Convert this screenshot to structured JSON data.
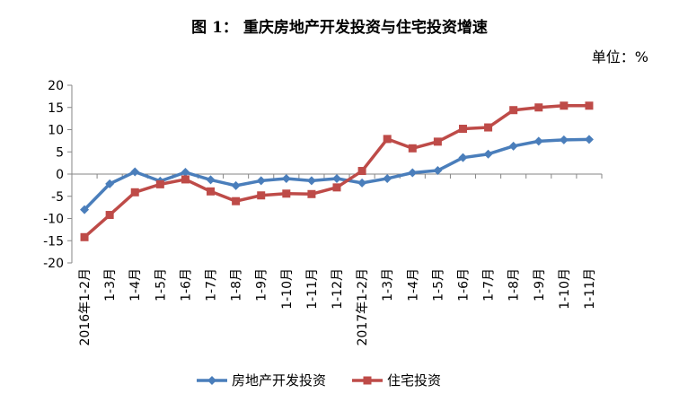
{
  "chart_data": {
    "type": "line",
    "title": "图 1：  重庆房地产开发投资与住宅投资增速",
    "unit_label": "单位：%",
    "categories": [
      "2016年1-2月",
      "1-3月",
      "1-4月",
      "1-5月",
      "1-6月",
      "1-7月",
      "1-8月",
      "1-9月",
      "1-10月",
      "1-11月",
      "1-12月",
      "2017年1-2月",
      "1-3月",
      "1-4月",
      "1-5月",
      "1-6月",
      "1-7月",
      "1-8月",
      "1-9月",
      "1-10月",
      "1-11月"
    ],
    "ylim": [
      -20,
      20
    ],
    "yticks": [
      20,
      15,
      10,
      5,
      0,
      -5,
      -10,
      -15,
      -20
    ],
    "grid": false,
    "legend_position": "bottom",
    "series": [
      {
        "name": "房地产开发投资",
        "color": "#4A7EBB",
        "marker": "diamond",
        "values": [
          -8,
          -2.2,
          0.5,
          -1.6,
          0.4,
          -1.3,
          -2.6,
          -1.5,
          -1.0,
          -1.5,
          -1.0,
          -2.0,
          -1.0,
          0.3,
          0.8,
          3.7,
          4.5,
          6.3,
          7.4,
          7.7,
          7.8
        ]
      },
      {
        "name": "住宅投资",
        "color": "#BE4B48",
        "marker": "square",
        "values": [
          -14.2,
          -9.2,
          -4.1,
          -2.3,
          -1.2,
          -3.9,
          -6.1,
          -4.8,
          -4.4,
          -4.5,
          -3.0,
          0.7,
          7.9,
          5.8,
          7.3,
          10.2,
          10.5,
          14.4,
          15.0,
          15.4,
          15.4
        ]
      }
    ]
  }
}
